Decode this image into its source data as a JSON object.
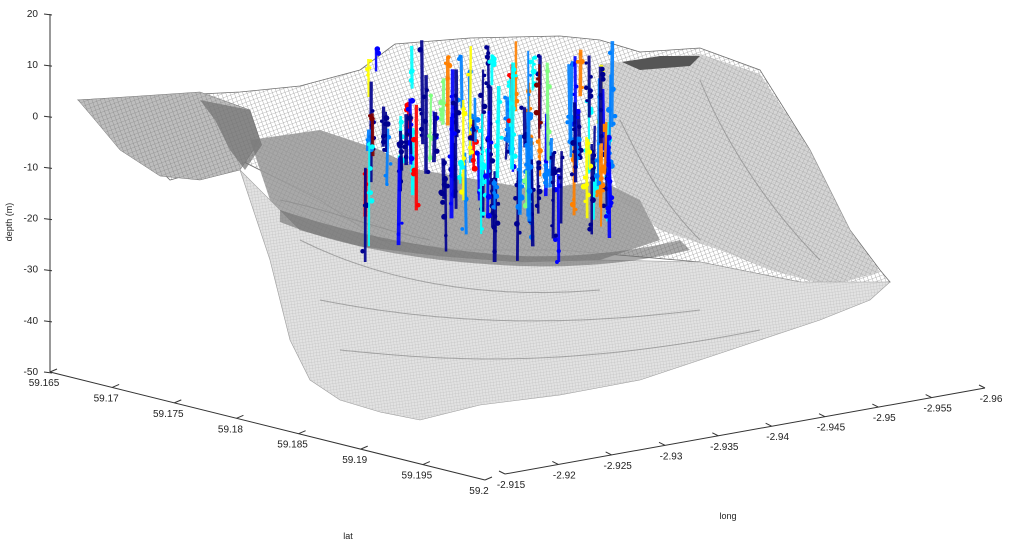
{
  "chart_data": {
    "type": "surface3d",
    "zlabel": "depth (m)",
    "xlabel": "lat",
    "ylabel": "long",
    "z_ticks": [
      "20",
      "10",
      "0",
      "-10",
      "-20",
      "-30",
      "-40",
      "-50"
    ],
    "lat_ticks": [
      "59.165",
      "59.17",
      "59.175",
      "59.18",
      "59.185",
      "59.19",
      "59.195",
      "59.2"
    ],
    "long_ticks": [
      "-2.915",
      "-2.92",
      "-2.925",
      "-2.93",
      "-2.935",
      "-2.94",
      "-2.945",
      "-2.95",
      "-2.955",
      "-2.96"
    ],
    "zlim": [
      -50,
      20
    ],
    "lat_range": [
      59.165,
      59.2
    ],
    "long_range": [
      -2.96,
      -2.915
    ],
    "surface": {
      "description_color": "#9a9a9a",
      "style": "gray wireframe mesh"
    },
    "scatter_colormap": [
      "#00008f",
      "#0000ff",
      "#0080ff",
      "#00ffff",
      "#80ff80",
      "#ffff00",
      "#ff8000",
      "#ff0000",
      "#800000"
    ]
  }
}
